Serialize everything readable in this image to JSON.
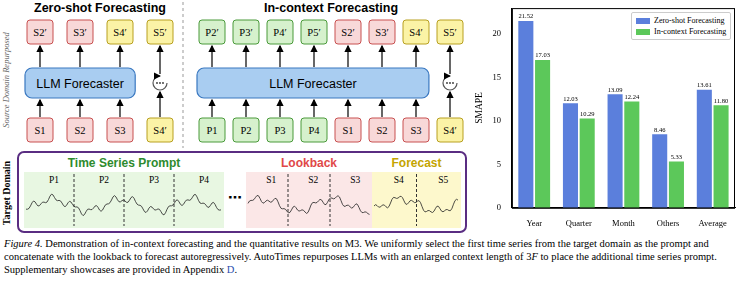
{
  "diagram": {
    "source_label": "Source Domain Repurposed",
    "target_label": "Target Domain",
    "panels": [
      {
        "title": "Zero-shot Forecasting",
        "model": "LLM Forecaster",
        "outputs": [
          {
            "label": "S2′",
            "kind": "lookback"
          },
          {
            "label": "S3′",
            "kind": "lookback"
          },
          {
            "label": "S4′",
            "kind": "forecast"
          },
          {
            "label": "S5′",
            "kind": "forecast"
          }
        ],
        "inputs": [
          {
            "label": "S1",
            "kind": "lookback"
          },
          {
            "label": "S2",
            "kind": "lookback"
          },
          {
            "label": "S3",
            "kind": "lookback"
          },
          {
            "label": "S4′",
            "kind": "forecast"
          }
        ]
      },
      {
        "title": "In-context Forecasting",
        "model": "LLM Forecaster",
        "outputs": [
          {
            "label": "P2′",
            "kind": "prompt"
          },
          {
            "label": "P3′",
            "kind": "prompt"
          },
          {
            "label": "P4′",
            "kind": "prompt"
          },
          {
            "label": "P5′",
            "kind": "prompt"
          },
          {
            "label": "S2′",
            "kind": "lookback"
          },
          {
            "label": "S3′",
            "kind": "lookback"
          },
          {
            "label": "S4′",
            "kind": "forecast"
          },
          {
            "label": "S5′",
            "kind": "forecast"
          }
        ],
        "inputs": [
          {
            "label": "P1",
            "kind": "prompt"
          },
          {
            "label": "P2",
            "kind": "prompt"
          },
          {
            "label": "P3",
            "kind": "prompt"
          },
          {
            "label": "P4",
            "kind": "prompt"
          },
          {
            "label": "S1",
            "kind": "lookback"
          },
          {
            "label": "S2",
            "kind": "lookback"
          },
          {
            "label": "S3",
            "kind": "lookback"
          },
          {
            "label": "S4′",
            "kind": "forecast"
          }
        ]
      }
    ],
    "target": {
      "gap_text": "⋯",
      "sections": [
        {
          "title": "Time Series Prompt",
          "kind": "prompt",
          "segments": [
            "P1",
            "P2",
            "P3",
            "P4"
          ]
        },
        {
          "title": "Lookback",
          "kind": "lookback",
          "segments": [
            "S1",
            "S2",
            "S3"
          ]
        },
        {
          "title": "Forecast",
          "kind": "forecast",
          "segments": [
            "S4",
            "S5"
          ]
        }
      ]
    }
  },
  "chart_data": {
    "type": "bar",
    "y_label": "SMAPE",
    "categories": [
      "Year",
      "Quarter",
      "Month",
      "Others",
      "Average"
    ],
    "series": [
      {
        "name": "Zero-shot Forecasting",
        "color": "#5b7fdc",
        "values": [
          21.52,
          12.03,
          13.09,
          8.46,
          13.61
        ],
        "value_labels": [
          "21.52",
          "12.03",
          "13.09",
          "8.46",
          "13.61"
        ]
      },
      {
        "name": "In-context Forecasting",
        "color": "#5cc85a",
        "values": [
          17.03,
          10.29,
          12.24,
          5.33,
          11.8
        ],
        "value_labels": [
          "17.03",
          "10.29",
          "12.24",
          "5.33",
          "11.80"
        ]
      }
    ],
    "ylim": [
      0,
      23
    ],
    "yticks": [
      0,
      5,
      10,
      15,
      20
    ],
    "grid": false,
    "legend": "upper right",
    "data_labels": true
  },
  "caption": {
    "label": "Figure 4.",
    "segments": [
      {
        "text": " Demonstration of in-context forecasting and the quantitative results on M3. We uniformly select the first time series from the target domain as the prompt and concatenate with the lookback to forecast autoregressively. AutoTimes repurposes LLMs with an enlarged context length of 3"
      },
      {
        "text": "F",
        "style": "italic"
      },
      {
        "text": " to place the additional time series prompt. Supplementary showcases are provided in Appendix "
      },
      {
        "text": "D",
        "style": "link"
      },
      {
        "text": "."
      }
    ]
  }
}
